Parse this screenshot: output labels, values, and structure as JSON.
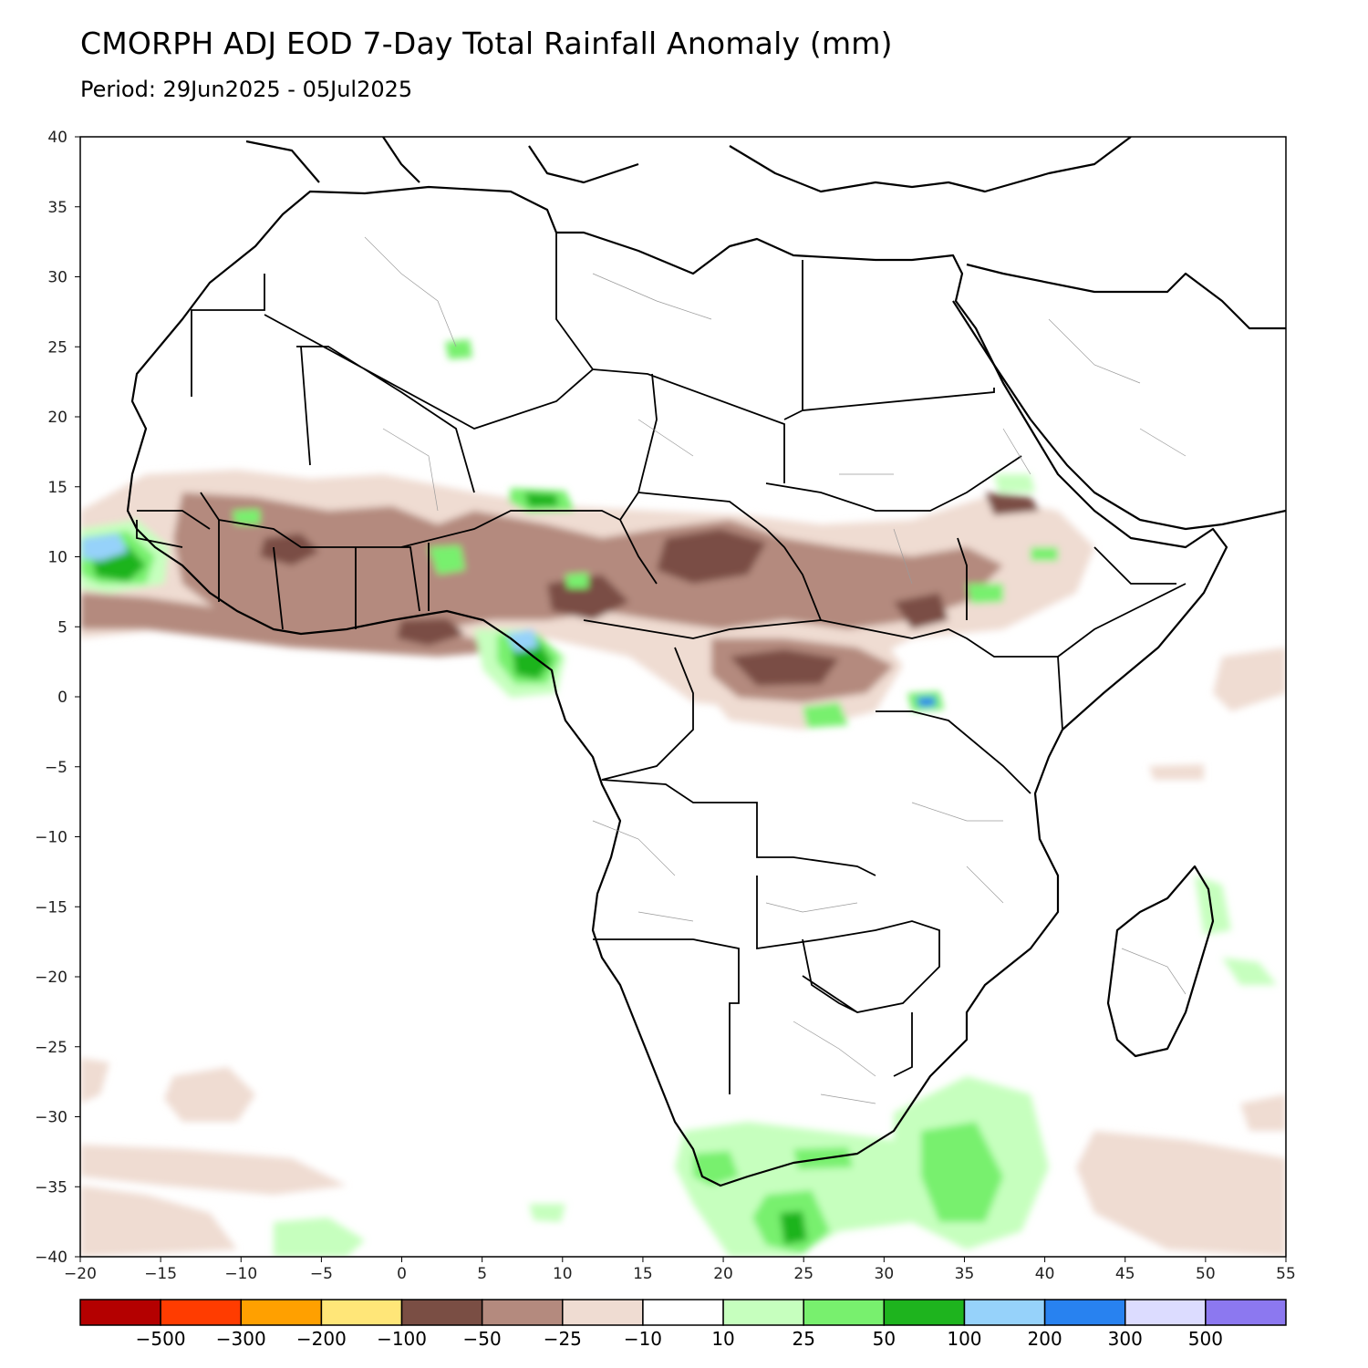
{
  "title": "CMORPH ADJ EOD 7-Day Total Rainfall Anomaly (mm)",
  "period": "Period: 29Jun2025 - 05Jul2025",
  "map": {
    "lon_range": [
      -20,
      55
    ],
    "lat_range": [
      -40,
      40
    ],
    "lon_ticks": [
      "-20",
      "-15",
      "-10",
      "-5",
      "0",
      "5",
      "10",
      "15",
      "20",
      "25",
      "30",
      "35",
      "40",
      "45",
      "50",
      "55"
    ],
    "lat_ticks": [
      "40",
      "35",
      "30",
      "25",
      "20",
      "15",
      "10",
      "5",
      "0",
      "-5",
      "-10",
      "-15",
      "-20",
      "-25",
      "-30",
      "-35",
      "-40"
    ]
  },
  "colorbar": {
    "colors": [
      "#b40000",
      "#ff3c00",
      "#ffa000",
      "#ffe678",
      "#7a4e44",
      "#b48a7e",
      "#efdcd2",
      "#ffffff",
      "#c6ffbe",
      "#78f06e",
      "#1eb41e",
      "#96d2fa",
      "#2882f0",
      "#dcdcff",
      "#8c78f0"
    ],
    "labels": [
      "-500",
      "-300",
      "-200",
      "-100",
      "-50",
      "-25",
      "-10",
      "10",
      "25",
      "50",
      "100",
      "200",
      "300",
      "500"
    ]
  },
  "colors": {
    "land_outline": "#000000",
    "admin_lines": "#9a9a9a"
  }
}
